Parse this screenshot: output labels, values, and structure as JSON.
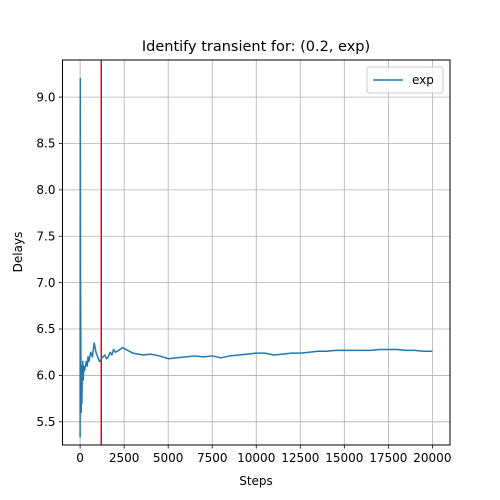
{
  "chart_data": {
    "type": "line",
    "title": "Identify transient for: (0.2, exp)",
    "xlabel": "Steps",
    "ylabel": "Delays",
    "xlim": [
      -1000,
      21000
    ],
    "ylim": [
      5.25,
      9.4
    ],
    "xticks": [
      0,
      2500,
      5000,
      7500,
      10000,
      12500,
      15000,
      17500,
      20000
    ],
    "xtick_labels": [
      "0",
      "2500",
      "5000",
      "7500",
      "10000",
      "12500",
      "15000",
      "17500",
      "20000"
    ],
    "yticks": [
      5.5,
      6.0,
      6.5,
      7.0,
      7.5,
      8.0,
      8.5,
      9.0
    ],
    "ytick_labels": [
      "5.5",
      "6.0",
      "6.5",
      "7.0",
      "7.5",
      "8.0",
      "8.5",
      "9.0"
    ],
    "grid": true,
    "legend_position": "top-right",
    "series": [
      {
        "name": "exp",
        "color": "#1f77b4",
        "x": [
          0,
          10,
          20,
          40,
          60,
          80,
          100,
          120,
          150,
          180,
          200,
          250,
          300,
          350,
          400,
          450,
          500,
          600,
          700,
          800,
          900,
          1000,
          1100,
          1200,
          1300,
          1400,
          1500,
          1600,
          1700,
          1800,
          1900,
          2000,
          2200,
          2400,
          2600,
          2800,
          3000,
          3300,
          3600,
          4000,
          4500,
          5000,
          5500,
          6000,
          6500,
          7000,
          7500,
          8000,
          8500,
          9000,
          9500,
          10000,
          10500,
          11000,
          11500,
          12000,
          12500,
          13000,
          13500,
          14000,
          14500,
          15000,
          15500,
          16000,
          16500,
          17000,
          17500,
          18000,
          18500,
          19000,
          19500,
          20000
        ],
        "y": [
          5.33,
          9.2,
          7.2,
          6.3,
          5.6,
          6.1,
          5.7,
          6.0,
          6.15,
          5.95,
          6.1,
          6.05,
          6.1,
          6.15,
          6.1,
          6.2,
          6.15,
          6.25,
          6.2,
          6.35,
          6.25,
          6.2,
          6.15,
          6.18,
          6.2,
          6.22,
          6.18,
          6.2,
          6.25,
          6.22,
          6.28,
          6.25,
          6.27,
          6.3,
          6.28,
          6.26,
          6.24,
          6.23,
          6.22,
          6.23,
          6.21,
          6.18,
          6.19,
          6.2,
          6.21,
          6.2,
          6.21,
          6.19,
          6.21,
          6.22,
          6.23,
          6.24,
          6.24,
          6.22,
          6.23,
          6.24,
          6.24,
          6.25,
          6.26,
          6.26,
          6.27,
          6.27,
          6.27,
          6.27,
          6.27,
          6.28,
          6.28,
          6.28,
          6.27,
          6.27,
          6.26,
          6.26
        ]
      }
    ],
    "vline": {
      "x": 1200,
      "color": "#ff0000"
    }
  }
}
